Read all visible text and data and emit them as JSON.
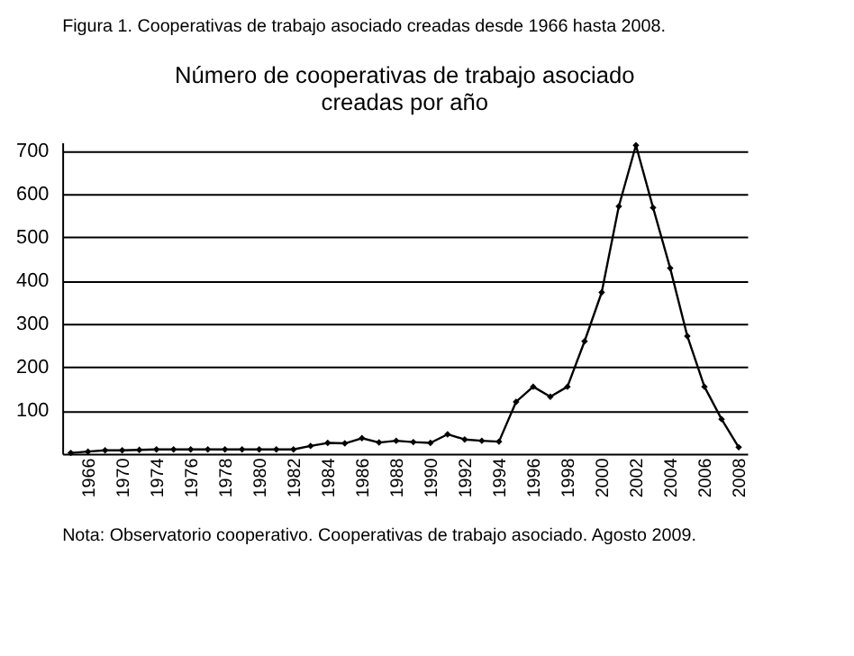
{
  "chart_data": {
    "type": "line",
    "title": "Número de cooperativas de trabajo asociado creadas por año",
    "categories": [
      null,
      "1966",
      null,
      "1970",
      null,
      "1974",
      null,
      "1976",
      null,
      "1978",
      null,
      "1980",
      null,
      "1982",
      null,
      "1984",
      null,
      "1986",
      null,
      "1988",
      null,
      "1990",
      null,
      "1992",
      null,
      "1994",
      null,
      "1996",
      null,
      "1998",
      null,
      "2000",
      null,
      "2002",
      null,
      "2004",
      null,
      "2006",
      null,
      "2008"
    ],
    "series": [
      {
        "color": "#000000",
        "values": [
          2,
          5,
          8,
          8,
          9,
          10,
          10,
          10,
          10,
          10,
          10,
          10,
          10,
          10,
          18,
          25,
          24,
          36,
          26,
          30,
          27,
          25,
          45,
          33,
          30,
          28,
          120,
          155,
          132,
          155,
          260,
          373,
          572,
          713,
          569,
          429,
          272,
          155,
          80,
          15
        ]
      }
    ],
    "ylim": [
      0,
      720
    ],
    "yticks": [
      100,
      200,
      300,
      400,
      500,
      600,
      700
    ],
    "grid": "y",
    "marker": "diamond",
    "line_style": "solid",
    "annotations": [
      "Figura 1. Cooperativas de trabajo asociado creadas desde 1966 hasta 2008.",
      "Nota: Observatorio cooperativo. Cooperativas de trabajo asociado. Agosto 2009."
    ]
  }
}
